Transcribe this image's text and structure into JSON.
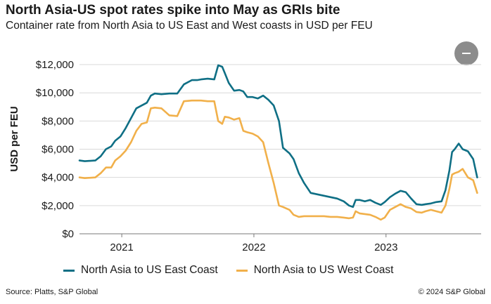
{
  "header": {
    "title": "North Asia-US spot rates spike into May as GRIs bite",
    "subtitle": "Container rate from North Asia to US East and West coasts in USD per FEU"
  },
  "chart_data": {
    "type": "line",
    "ylabel": "USD per FEU",
    "xlabel": "",
    "ylim": [
      0,
      12500
    ],
    "yticks": [
      0,
      2000,
      4000,
      6000,
      8000,
      10000,
      12000
    ],
    "ytick_labels": [
      "$0",
      "$2,000",
      "$4,000",
      "$6,000",
      "$8,000",
      "$10,000",
      "$12,000"
    ],
    "xlim": [
      2020.68,
      2023.72
    ],
    "xticks": [
      2021.0,
      2022.0,
      2023.0
    ],
    "xtick_labels": [
      "2021",
      "2022",
      "2023"
    ],
    "grid": "horizontal",
    "legend_position": "bottom",
    "series": [
      {
        "name": "North Asia to US East Coast",
        "color": "#0f6f85",
        "x": [
          2020.68,
          2020.72,
          2020.8,
          2020.84,
          2020.88,
          2020.92,
          2020.95,
          2020.99,
          2021.03,
          2021.07,
          2021.11,
          2021.15,
          2021.19,
          2021.22,
          2021.25,
          2021.3,
          2021.36,
          2021.42,
          2021.47,
          2021.53,
          2021.57,
          2021.6,
          2021.65,
          2021.7,
          2021.73,
          2021.76,
          2021.78,
          2021.81,
          2021.85,
          2021.89,
          2021.92,
          2021.95,
          2021.99,
          2022.03,
          2022.07,
          2022.11,
          2022.15,
          2022.19,
          2022.22,
          2022.27,
          2022.3,
          2022.34,
          2022.38,
          2022.43,
          2022.48,
          2022.53,
          2022.58,
          2022.63,
          2022.68,
          2022.72,
          2022.75,
          2022.77,
          2022.8,
          2022.84,
          2022.88,
          2022.92,
          2022.96,
          2022.99,
          2023.03,
          2023.07,
          2023.11,
          2023.15,
          2023.19,
          2023.23,
          2023.27,
          2023.3,
          2023.34,
          2023.38,
          2023.42,
          2023.45,
          2023.48,
          2023.5,
          2023.52,
          2023.55,
          2023.58,
          2023.62,
          2023.66,
          2023.69
        ],
        "y": [
          5200,
          5150,
          5200,
          5500,
          6000,
          6200,
          6600,
          6900,
          7500,
          8200,
          8900,
          9100,
          9300,
          9800,
          9950,
          9900,
          9950,
          9950,
          10600,
          10900,
          10900,
          10950,
          11000,
          10950,
          11950,
          11850,
          11400,
          10700,
          10150,
          10200,
          10100,
          9700,
          9700,
          9600,
          9800,
          9500,
          9100,
          8000,
          6100,
          5700,
          5300,
          4300,
          3600,
          2900,
          2800,
          2700,
          2600,
          2500,
          2300,
          2000,
          1900,
          2400,
          2400,
          2300,
          2400,
          2200,
          2050,
          2250,
          2600,
          2850,
          3050,
          2950,
          2500,
          2100,
          2050,
          2100,
          2150,
          2250,
          2300,
          3100,
          4500,
          5800,
          6000,
          6400,
          6000,
          5850,
          5300,
          4000
        ]
      },
      {
        "name": "North Asia to US West Coast",
        "color": "#f1b04a",
        "x": [
          2020.68,
          2020.72,
          2020.8,
          2020.84,
          2020.88,
          2020.92,
          2020.95,
          2020.99,
          2021.03,
          2021.07,
          2021.11,
          2021.15,
          2021.19,
          2021.22,
          2021.25,
          2021.3,
          2021.36,
          2021.42,
          2021.47,
          2021.53,
          2021.57,
          2021.6,
          2021.65,
          2021.7,
          2021.73,
          2021.76,
          2021.78,
          2021.81,
          2021.85,
          2021.89,
          2021.92,
          2021.95,
          2021.99,
          2022.03,
          2022.07,
          2022.11,
          2022.15,
          2022.19,
          2022.22,
          2022.27,
          2022.3,
          2022.34,
          2022.38,
          2022.43,
          2022.48,
          2022.53,
          2022.58,
          2022.63,
          2022.68,
          2022.72,
          2022.75,
          2022.77,
          2022.8,
          2022.84,
          2022.88,
          2022.92,
          2022.96,
          2022.99,
          2023.03,
          2023.07,
          2023.11,
          2023.15,
          2023.19,
          2023.23,
          2023.27,
          2023.3,
          2023.34,
          2023.38,
          2023.42,
          2023.45,
          2023.48,
          2023.5,
          2023.52,
          2023.55,
          2023.58,
          2023.62,
          2023.66,
          2023.69
        ],
        "y": [
          4000,
          3950,
          4000,
          4300,
          4700,
          4700,
          5200,
          5500,
          5900,
          6500,
          7300,
          7800,
          7900,
          8900,
          8950,
          8900,
          8400,
          8350,
          9400,
          9450,
          9450,
          9450,
          9400,
          9400,
          8000,
          7800,
          8300,
          8250,
          8100,
          8200,
          7300,
          7200,
          7100,
          6900,
          6500,
          5000,
          3600,
          2000,
          1900,
          1700,
          1350,
          1200,
          1250,
          1250,
          1250,
          1250,
          1200,
          1200,
          1150,
          1100,
          1150,
          1600,
          1450,
          1400,
          1350,
          1200,
          1000,
          1150,
          1700,
          1900,
          2100,
          1900,
          1800,
          1550,
          1500,
          1600,
          1700,
          1600,
          1500,
          2000,
          3200,
          4200,
          4300,
          4400,
          4600,
          4000,
          3800,
          2900
        ]
      }
    ]
  },
  "controls": {
    "collapse_icon": "minus-icon"
  },
  "footer": {
    "source": "Source: Platts, S&P Global",
    "copyright": "© 2024 S&P Global"
  }
}
